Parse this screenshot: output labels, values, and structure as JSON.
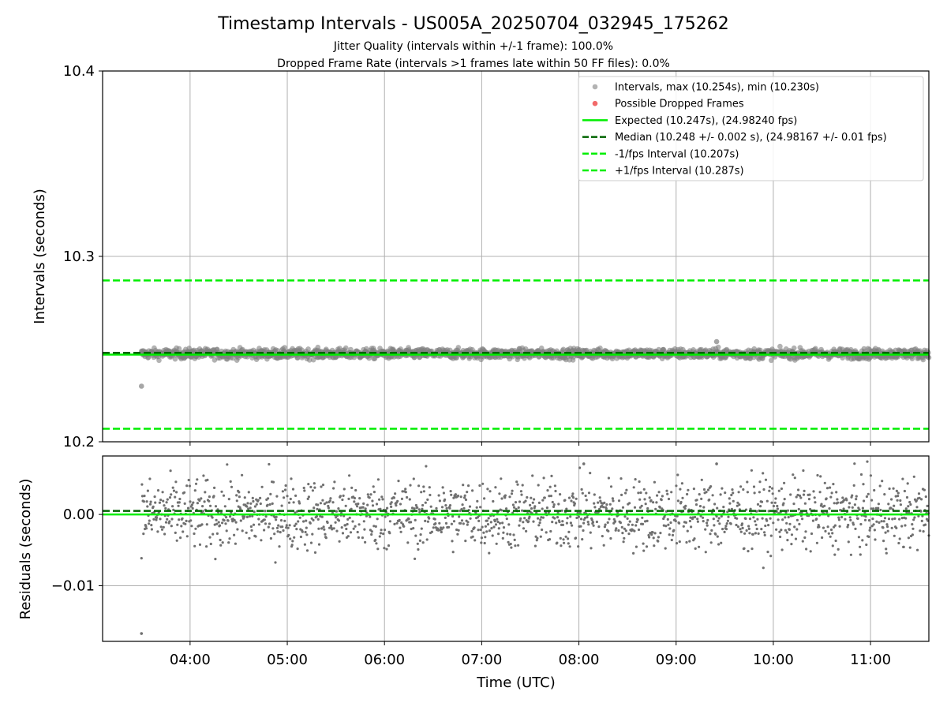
{
  "chart_data": [
    {
      "type": "scatter",
      "title": "Timestamp Intervals - US005A_20250704_032945_175262",
      "subtitles": [
        "Jitter Quality (intervals within +/-1 frame): 100.0%",
        "Dropped Frame Rate (intervals >1 frames late within 50 FF files): 0.0%"
      ],
      "xlabel": "",
      "ylabel": "Intervals (seconds)",
      "xlim": [
        "03:06",
        "11:36"
      ],
      "ylim": [
        10.2,
        10.4
      ],
      "yticks": [
        "10.2",
        "10.3",
        "10.4"
      ],
      "grid": true,
      "legend_position": "upper right",
      "series": [
        {
          "name": "Intervals, max (10.254s), min (10.230s)",
          "kind": "scatter",
          "color": "#808080",
          "x_range": [
            "03:30",
            "11:36"
          ],
          "y_center": 10.2475,
          "y_spread": 0.0015,
          "extreme_points": [
            {
              "x": "03:30",
              "y": 10.23
            },
            {
              "x": "09:25",
              "y": 10.254
            }
          ]
        },
        {
          "name": "Possible Dropped Frames",
          "kind": "scatter",
          "color": "#f05050",
          "points": []
        },
        {
          "name": "Expected (10.247s), (24.98240 fps)",
          "kind": "hline",
          "y": 10.247,
          "color": "#00ee00",
          "style": "solid"
        },
        {
          "name": "Median (10.248 +/- 0.002 s), (24.98167 +/- 0.01 fps)",
          "kind": "hline",
          "y": 10.248,
          "color": "#006400",
          "style": "dashed"
        },
        {
          "name": "-1/fps Interval (10.207s)",
          "kind": "hline",
          "y": 10.207,
          "color": "#00ee00",
          "style": "dashed"
        },
        {
          "name": "+1/fps Interval (10.287s)",
          "kind": "hline",
          "y": 10.287,
          "color": "#00ee00",
          "style": "dashed"
        }
      ]
    },
    {
      "type": "scatter",
      "xlabel": "Time (UTC)",
      "ylabel": "Residuals (seconds)",
      "xlim": [
        "03:06",
        "11:36"
      ],
      "ylim": [
        -0.0178,
        0.0082
      ],
      "xticks": [
        "04:00",
        "05:00",
        "06:00",
        "07:00",
        "08:00",
        "09:00",
        "10:00",
        "11:00"
      ],
      "yticks": [
        "0.00",
        "−0.01"
      ],
      "grid": true,
      "series": [
        {
          "kind": "scatter",
          "color": "#707070",
          "x_range": [
            "03:30",
            "11:36"
          ],
          "y_spread": 0.0055,
          "extreme_points": [
            {
              "x": "03:30",
              "y": -0.0167
            },
            {
              "x": "08:03",
              "y": 0.0071
            },
            {
              "x": "09:25",
              "y": 0.0071
            }
          ]
        },
        {
          "kind": "hline",
          "y": 0.0,
          "color": "#00ee00",
          "style": "solid"
        },
        {
          "kind": "hline",
          "y": 0.0005,
          "color": "#006400",
          "style": "dashed"
        }
      ]
    }
  ]
}
